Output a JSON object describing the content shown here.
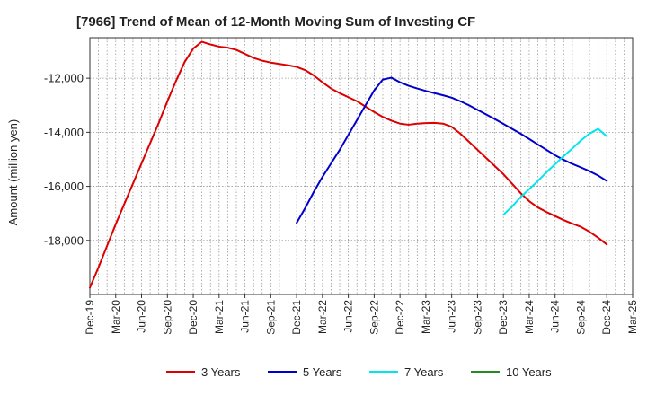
{
  "chart_data": {
    "type": "line",
    "title": "[7966]  Trend of Mean of 12-Month Moving Sum of Investing CF",
    "xlabel": "",
    "ylabel": "Amount (million yen)",
    "ylim": [
      -20000,
      -10500
    ],
    "grid": true,
    "legend_position": "bottom",
    "x_ticks": [
      "Dec-19",
      "Mar-20",
      "Jun-20",
      "Sep-20",
      "Dec-20",
      "Mar-21",
      "Jun-21",
      "Sep-21",
      "Dec-21",
      "Mar-22",
      "Jun-22",
      "Sep-22",
      "Dec-22",
      "Mar-23",
      "Jun-23",
      "Sep-23",
      "Dec-23",
      "Mar-24",
      "Jun-24",
      "Sep-24",
      "Dec-24",
      "Mar-25"
    ],
    "y_ticks": [
      -18000,
      -16000,
      -14000,
      -12000
    ],
    "y_tick_labels": [
      "-18,000",
      "-16,000",
      "-14,000",
      "-12,000"
    ],
    "series": [
      {
        "name": "3 Years",
        "color": "#dd0000",
        "points": [
          [
            "2019-12",
            -19750
          ],
          [
            "2020-01",
            -19000
          ],
          [
            "2020-02",
            -18200
          ],
          [
            "2020-03",
            -17400
          ],
          [
            "2020-04",
            -16650
          ],
          [
            "2020-05",
            -15900
          ],
          [
            "2020-06",
            -15150
          ],
          [
            "2020-07",
            -14400
          ],
          [
            "2020-08",
            -13650
          ],
          [
            "2020-09",
            -12850
          ],
          [
            "2020-10",
            -12100
          ],
          [
            "2020-11",
            -11400
          ],
          [
            "2020-12",
            -10900
          ],
          [
            "2021-01",
            -10650
          ],
          [
            "2021-02",
            -10750
          ],
          [
            "2021-03",
            -10830
          ],
          [
            "2021-04",
            -10870
          ],
          [
            "2021-05",
            -10950
          ],
          [
            "2021-06",
            -11100
          ],
          [
            "2021-07",
            -11250
          ],
          [
            "2021-08",
            -11350
          ],
          [
            "2021-09",
            -11420
          ],
          [
            "2021-10",
            -11470
          ],
          [
            "2021-11",
            -11520
          ],
          [
            "2021-12",
            -11580
          ],
          [
            "2022-01",
            -11700
          ],
          [
            "2022-02",
            -11900
          ],
          [
            "2022-03",
            -12150
          ],
          [
            "2022-04",
            -12380
          ],
          [
            "2022-05",
            -12550
          ],
          [
            "2022-06",
            -12700
          ],
          [
            "2022-07",
            -12850
          ],
          [
            "2022-08",
            -13050
          ],
          [
            "2022-09",
            -13250
          ],
          [
            "2022-10",
            -13430
          ],
          [
            "2022-11",
            -13570
          ],
          [
            "2022-12",
            -13680
          ],
          [
            "2023-01",
            -13720
          ],
          [
            "2023-02",
            -13680
          ],
          [
            "2023-03",
            -13660
          ],
          [
            "2023-04",
            -13650
          ],
          [
            "2023-05",
            -13680
          ],
          [
            "2023-06",
            -13800
          ],
          [
            "2023-07",
            -14050
          ],
          [
            "2023-08",
            -14350
          ],
          [
            "2023-09",
            -14650
          ],
          [
            "2023-10",
            -14950
          ],
          [
            "2023-11",
            -15250
          ],
          [
            "2023-12",
            -15550
          ],
          [
            "2024-01",
            -15900
          ],
          [
            "2024-02",
            -16250
          ],
          [
            "2024-03",
            -16550
          ],
          [
            "2024-04",
            -16780
          ],
          [
            "2024-05",
            -16950
          ],
          [
            "2024-06",
            -17100
          ],
          [
            "2024-07",
            -17250
          ],
          [
            "2024-08",
            -17380
          ],
          [
            "2024-09",
            -17500
          ],
          [
            "2024-10",
            -17680
          ],
          [
            "2024-11",
            -17900
          ],
          [
            "2024-12",
            -18150
          ]
        ]
      },
      {
        "name": "5 Years",
        "color": "#0000cc",
        "points": [
          [
            "2021-12",
            -17350
          ],
          [
            "2022-01",
            -16800
          ],
          [
            "2022-02",
            -16200
          ],
          [
            "2022-03",
            -15650
          ],
          [
            "2022-04",
            -15150
          ],
          [
            "2022-05",
            -14650
          ],
          [
            "2022-06",
            -14100
          ],
          [
            "2022-07",
            -13550
          ],
          [
            "2022-08",
            -13000
          ],
          [
            "2022-09",
            -12450
          ],
          [
            "2022-10",
            -12050
          ],
          [
            "2022-11",
            -11980
          ],
          [
            "2022-12",
            -12150
          ],
          [
            "2023-01",
            -12280
          ],
          [
            "2023-02",
            -12380
          ],
          [
            "2023-03",
            -12470
          ],
          [
            "2023-04",
            -12550
          ],
          [
            "2023-05",
            -12630
          ],
          [
            "2023-06",
            -12720
          ],
          [
            "2023-07",
            -12850
          ],
          [
            "2023-08",
            -13000
          ],
          [
            "2023-09",
            -13170
          ],
          [
            "2023-10",
            -13340
          ],
          [
            "2023-11",
            -13510
          ],
          [
            "2023-12",
            -13690
          ],
          [
            "2024-01",
            -13870
          ],
          [
            "2024-02",
            -14050
          ],
          [
            "2024-03",
            -14250
          ],
          [
            "2024-04",
            -14450
          ],
          [
            "2024-05",
            -14650
          ],
          [
            "2024-06",
            -14850
          ],
          [
            "2024-07",
            -15020
          ],
          [
            "2024-08",
            -15170
          ],
          [
            "2024-09",
            -15300
          ],
          [
            "2024-10",
            -15440
          ],
          [
            "2024-11",
            -15600
          ],
          [
            "2024-12",
            -15800
          ]
        ]
      },
      {
        "name": "7 Years",
        "color": "#00e5ee",
        "points": [
          [
            "2023-12",
            -17050
          ],
          [
            "2024-01",
            -16750
          ],
          [
            "2024-02",
            -16400
          ],
          [
            "2024-03",
            -16100
          ],
          [
            "2024-04",
            -15800
          ],
          [
            "2024-05",
            -15480
          ],
          [
            "2024-06",
            -15180
          ],
          [
            "2024-07",
            -14880
          ],
          [
            "2024-08",
            -14600
          ],
          [
            "2024-09",
            -14300
          ],
          [
            "2024-10",
            -14050
          ],
          [
            "2024-11",
            -13870
          ],
          [
            "2024-12",
            -14150
          ]
        ]
      },
      {
        "name": "10 Years",
        "color": "#228b22",
        "points": []
      }
    ]
  }
}
